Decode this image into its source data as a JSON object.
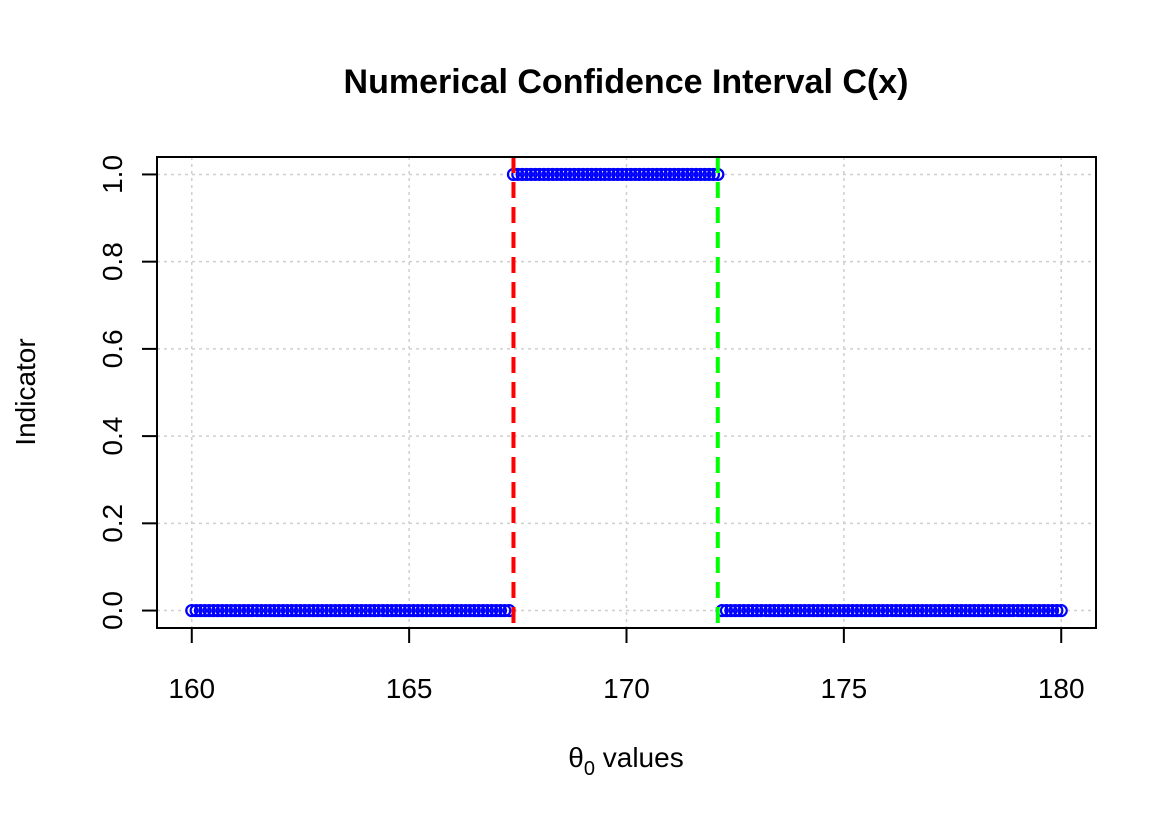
{
  "chart_data": {
    "type": "scatter",
    "title": "Numerical Confidence Interval C(x)",
    "xlabel_symbol": "θ",
    "xlabel_subscript": "0",
    "xlabel_rest": " values",
    "ylabel": "Indicator",
    "xlim": [
      159.2,
      180.8
    ],
    "ylim": [
      -0.04,
      1.04
    ],
    "xticks": [
      160,
      165,
      170,
      175,
      180
    ],
    "yticks": [
      0.0,
      0.2,
      0.4,
      0.6,
      0.8,
      1.0
    ],
    "ytick_labels": [
      "0.0",
      "0.2",
      "0.4",
      "0.6",
      "0.8",
      "1.0"
    ],
    "grid": true,
    "point_color": "#0000ff",
    "x_start": 160,
    "x_end": 180,
    "x_step": 0.1,
    "interval_lower": 167.4,
    "interval_upper": 172.1,
    "lower_line_color": "#ff0000",
    "upper_line_color": "#00ff00"
  }
}
